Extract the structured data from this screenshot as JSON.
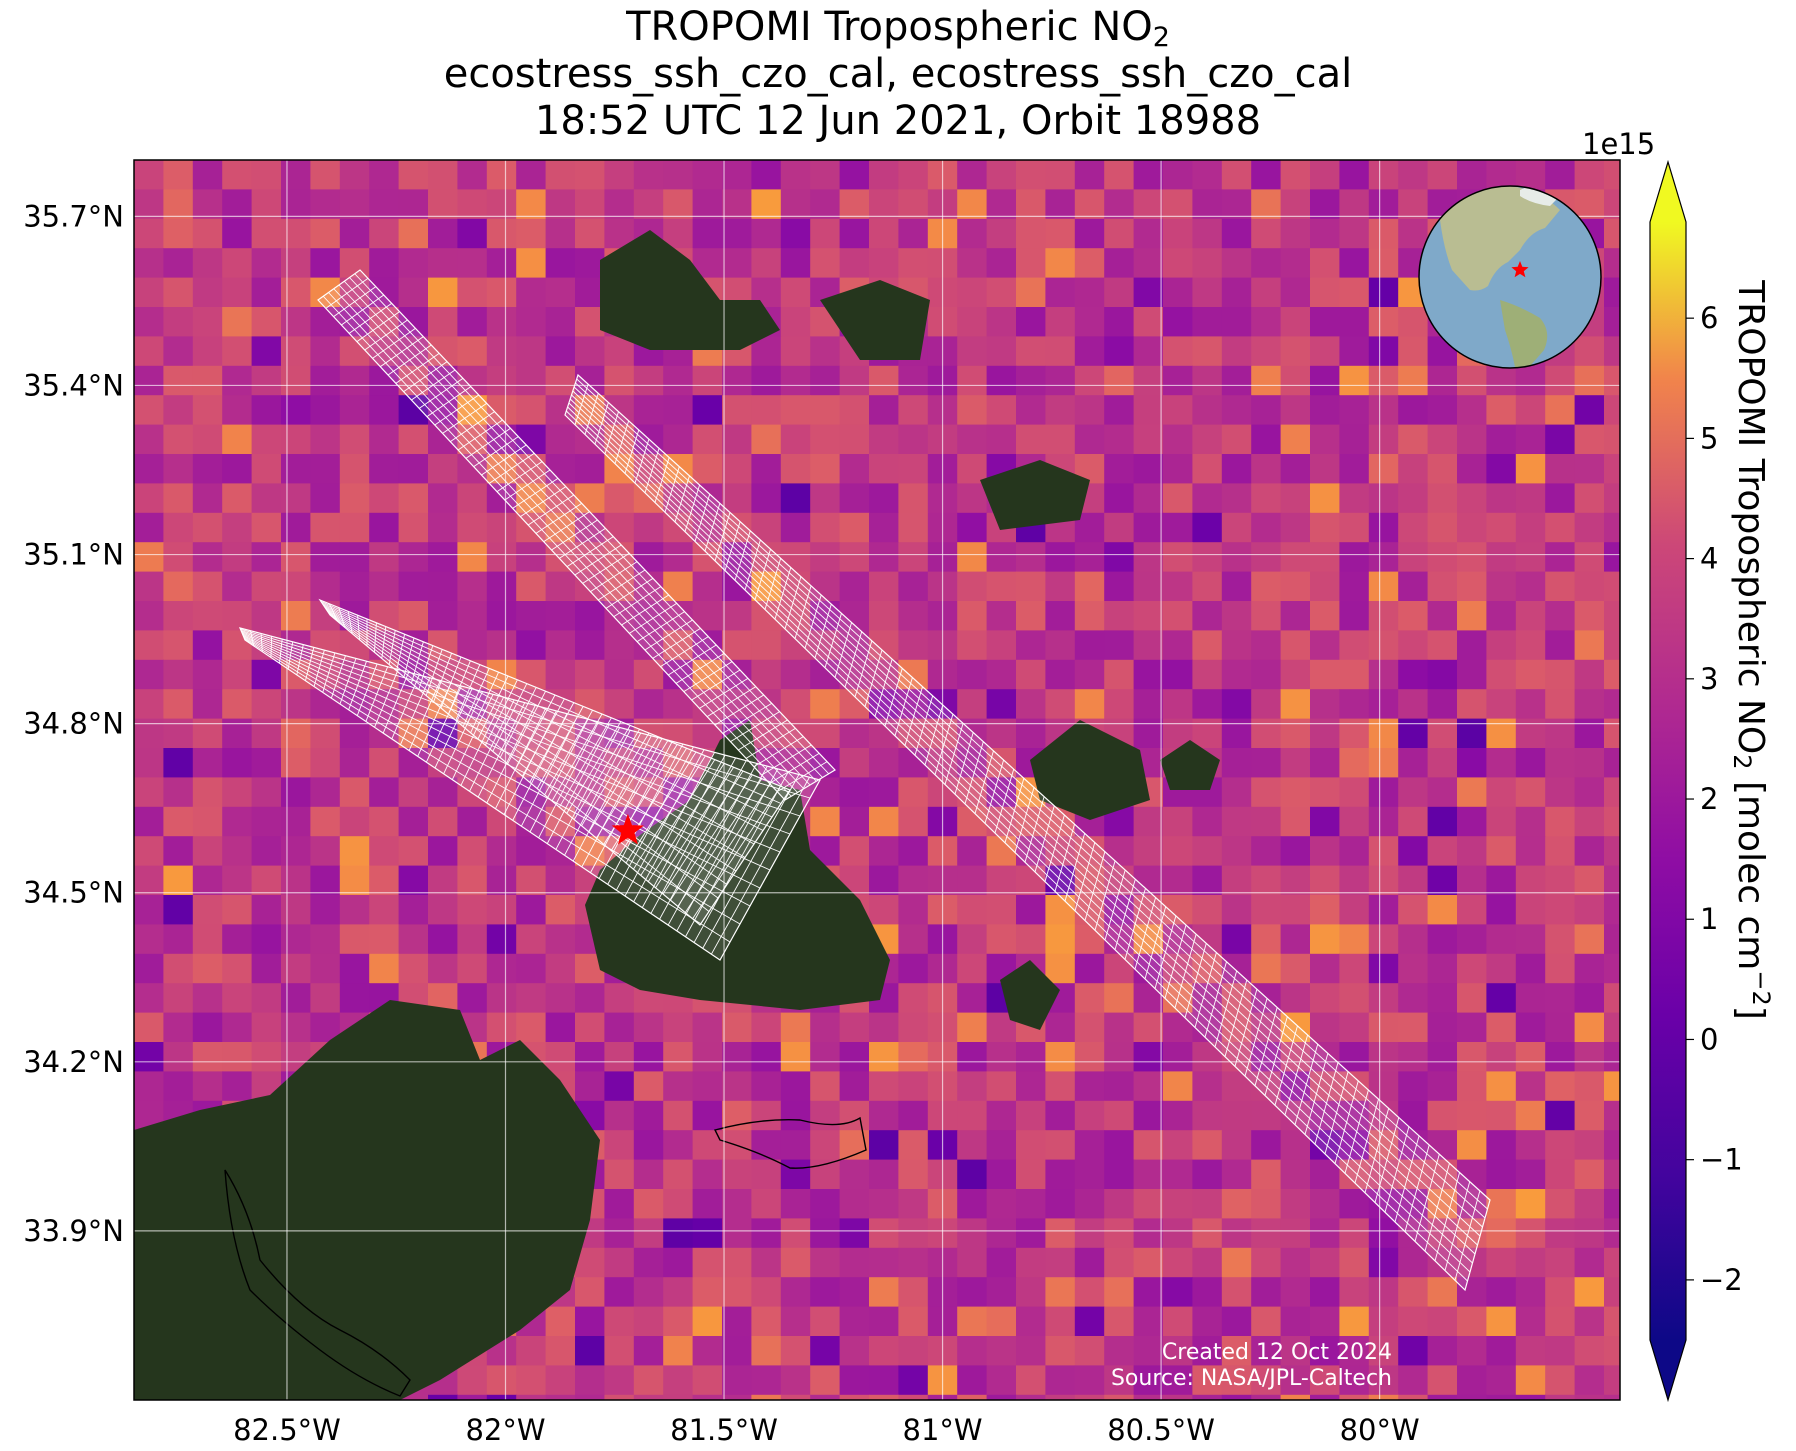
{
  "title": {
    "line1_main": "TROPOMI Tropospheric NO",
    "line1_sub": "2",
    "line2": "ecostress_ssh_czo_cal, ecostress_ssh_czo_cal",
    "line3": "18:52 UTC 12 Jun 2021, Orbit 18988"
  },
  "map": {
    "lat_ticks": [
      "35.7°N",
      "35.4°N",
      "35.1°N",
      "34.8°N",
      "34.5°N",
      "34.2°N",
      "33.9°N"
    ],
    "lon_ticks": [
      "82.5°W",
      "82°W",
      "81.5°W",
      "81°W",
      "80.5°W",
      "80°W"
    ],
    "lat_range": [
      33.6,
      35.8
    ],
    "lon_range": [
      -82.85,
      -79.45
    ],
    "target_lat": 34.61,
    "target_lon": -81.72,
    "marker_icon": "star-icon",
    "marker_color": "#ff0000",
    "inset_icon": "globe-icon",
    "colormap": "plasma"
  },
  "colorbar": {
    "exponent": "1e15",
    "ticks": [
      "6",
      "5",
      "4",
      "3",
      "2",
      "1",
      "0",
      "−1",
      "−2"
    ],
    "tick_values": [
      6,
      5,
      4,
      3,
      2,
      1,
      0,
      -1,
      -2
    ],
    "range": [
      -2.5,
      6.8
    ],
    "extend": "both",
    "label_main": "TROPOMI Tropospheric NO",
    "label_sub": "2",
    "label_units": " [molec cm",
    "label_sup": "−2",
    "label_end": "]"
  },
  "credits": {
    "created": "Created 12 Oct 2024",
    "source": "Source: NASA/JPL-Caltech"
  }
}
